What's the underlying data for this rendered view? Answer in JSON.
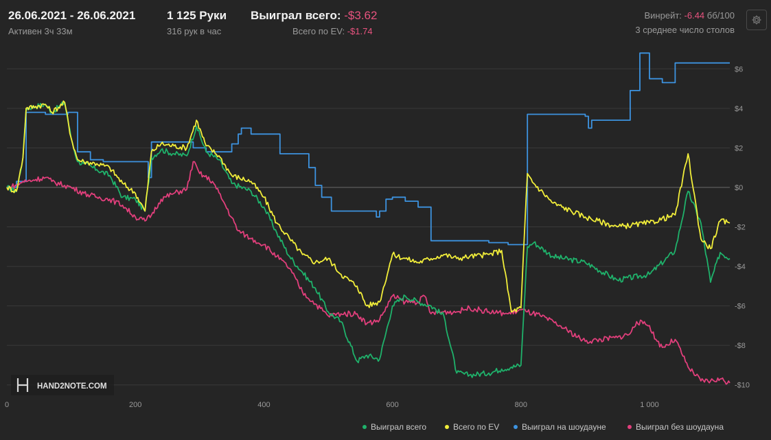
{
  "header": {
    "date_range": "26.06.2021 - 26.06.2021",
    "active_label": "Активен 3ч 33м",
    "hands": "1 125 Руки",
    "hands_per_hour": "316 рук в час",
    "won_total_label": "Выиграл всего:",
    "won_total_value": "-$3.62",
    "ev_label": "Всего по EV:",
    "ev_value": "-$1.74",
    "winrate_label": "Винрейт:",
    "winrate_value": "-6.44",
    "winrate_unit": "бб/100",
    "tables_label": "3 среднее число столов"
  },
  "logo_text": "HAND2NOTE.COM",
  "colors": {
    "background": "#252525",
    "grid": "#3a3a3a",
    "zero_line": "#6a6a6a",
    "won_total": "#1fb26b",
    "ev": "#f2ee3a",
    "showdown": "#3d93e0",
    "no_showdown": "#e23f7c",
    "negative": "#e8537f"
  },
  "icons": {
    "settings": "gear-icon"
  },
  "chart_data": {
    "type": "line",
    "xlim": [
      0,
      1125
    ],
    "ylim": [
      -10.6,
      7.4
    ],
    "x_ticks": [
      0,
      200,
      400,
      600,
      800,
      1000
    ],
    "x_tick_labels": [
      "0",
      "200",
      "400",
      "600",
      "800",
      "1 000"
    ],
    "y_ticks": [
      6,
      4,
      2,
      0,
      -2,
      -4,
      -6,
      -8,
      -10
    ],
    "y_tick_labels": [
      "$6",
      "$4",
      "$2",
      "$0",
      "-$2",
      "-$4",
      "-$6",
      "-$8",
      "-$10"
    ],
    "grid": true,
    "legend_position": "bottom-right",
    "series": [
      {
        "name": "Выиграл всего",
        "color": "#1fb26b",
        "x": [
          0,
          15,
          25,
          30,
          45,
          60,
          70,
          90,
          100,
          110,
          120,
          140,
          160,
          180,
          200,
          215,
          225,
          240,
          260,
          280,
          295,
          310,
          330,
          350,
          380,
          400,
          420,
          440,
          460,
          480,
          500,
          520,
          545,
          560,
          580,
          600,
          620,
          640,
          660,
          680,
          700,
          720,
          750,
          770,
          785,
          800,
          810,
          820,
          850,
          900,
          950,
          1000,
          1040,
          1060,
          1080,
          1095,
          1110,
          1125
        ],
        "y": [
          0,
          -0.2,
          1.5,
          4,
          4.1,
          4.2,
          3.8,
          4.3,
          2.5,
          1.3,
          1.2,
          0.9,
          0.6,
          -0.5,
          -0.6,
          -1.2,
          1.5,
          1.9,
          1.7,
          1.6,
          3.1,
          1.8,
          1.4,
          0.2,
          -0.2,
          -1,
          -2.3,
          -3.5,
          -4.3,
          -5.1,
          -6.3,
          -6.8,
          -8.8,
          -8.5,
          -8.7,
          -6,
          -5.5,
          -5.8,
          -6,
          -6.5,
          -9.4,
          -9.5,
          -9.4,
          -9.2,
          -9.1,
          -9,
          -3,
          -2.8,
          -3.5,
          -3.8,
          -4.7,
          -4.4,
          -3.2,
          -0.2,
          -1.8,
          -4.8,
          -3.3,
          -3.6
        ]
      },
      {
        "name": "Всего по EV",
        "color": "#f2ee3a",
        "x": [
          0,
          15,
          25,
          30,
          45,
          60,
          70,
          90,
          100,
          110,
          120,
          140,
          160,
          180,
          200,
          215,
          225,
          240,
          260,
          280,
          295,
          310,
          330,
          350,
          380,
          400,
          420,
          440,
          460,
          480,
          500,
          520,
          545,
          560,
          580,
          600,
          620,
          640,
          660,
          680,
          700,
          720,
          750,
          770,
          785,
          800,
          810,
          820,
          850,
          900,
          950,
          1000,
          1040,
          1060,
          1080,
          1095,
          1110,
          1125
        ],
        "y": [
          0,
          -0.2,
          1.5,
          4,
          4.1,
          4.2,
          3.8,
          4.3,
          2.5,
          1.4,
          1.3,
          1.2,
          1,
          0.2,
          -0.3,
          -1.2,
          1.8,
          2.2,
          2.1,
          2,
          3.4,
          2.1,
          1.6,
          0.6,
          0.3,
          -0.5,
          -1.8,
          -2.6,
          -3.4,
          -3.8,
          -3.6,
          -4.4,
          -5,
          -6,
          -5.8,
          -3.4,
          -3.6,
          -3.8,
          -3.6,
          -3.4,
          -3.6,
          -3.5,
          -3.4,
          -3.2,
          -6.3,
          -6.1,
          0.7,
          0.2,
          -0.8,
          -1.5,
          -2,
          -1.8,
          -1.4,
          1.7,
          -2.6,
          -3.1,
          -1.7,
          -1.8
        ]
      },
      {
        "name": "Выиграл на шоудауне",
        "color": "#3d93e0",
        "x": [
          0,
          15,
          30,
          40,
          60,
          80,
          95,
          110,
          130,
          150,
          170,
          190,
          210,
          220,
          225,
          240,
          260,
          275,
          290,
          310,
          330,
          350,
          360,
          365,
          380,
          400,
          425,
          440,
          460,
          470,
          480,
          490,
          505,
          520,
          545,
          560,
          575,
          580,
          590,
          600,
          620,
          640,
          650,
          660,
          690,
          720,
          750,
          780,
          800,
          810,
          830,
          860,
          900,
          905,
          910,
          930,
          960,
          970,
          975,
          985,
          1000,
          1020,
          1040,
          1050,
          1060,
          1080,
          1100,
          1125
        ],
        "y": [
          0,
          0.3,
          3.8,
          3.8,
          3.7,
          3.7,
          3.8,
          1.8,
          1.4,
          1.3,
          1.3,
          1.3,
          1.3,
          0.5,
          2.3,
          2.3,
          2.3,
          2.3,
          2.0,
          1.8,
          1.8,
          2.2,
          2.7,
          3.0,
          2.7,
          2.7,
          1.7,
          1.7,
          1.7,
          1.0,
          0.1,
          -0.5,
          -1.2,
          -1.2,
          -1.2,
          -1.2,
          -1.5,
          -1.2,
          -0.6,
          -0.5,
          -0.7,
          -1.0,
          -1.0,
          -2.7,
          -2.7,
          -2.7,
          -2.8,
          -2.9,
          -2.9,
          3.7,
          3.7,
          3.7,
          3.6,
          3.0,
          3.4,
          3.4,
          3.4,
          4.9,
          4.9,
          6.8,
          5.5,
          5.3,
          6.3,
          6.3,
          6.3,
          6.3,
          6.3,
          6.3
        ]
      },
      {
        "name": "Выиграл без шоудауна",
        "color": "#e23f7c",
        "x": [
          0,
          15,
          25,
          30,
          45,
          60,
          70,
          90,
          100,
          120,
          140,
          160,
          180,
          200,
          215,
          225,
          240,
          260,
          280,
          290,
          300,
          320,
          340,
          360,
          380,
          400,
          420,
          440,
          460,
          480,
          500,
          520,
          545,
          560,
          580,
          600,
          620,
          640,
          650,
          660,
          680,
          700,
          720,
          750,
          780,
          800,
          810,
          830,
          860,
          900,
          950,
          970,
          980,
          990,
          1000,
          1010,
          1020,
          1040,
          1060,
          1080,
          1095,
          1110,
          1125
        ],
        "y": [
          0,
          0.1,
          0.3,
          0.3,
          0.4,
          0.5,
          0.3,
          0.1,
          0.0,
          -0.3,
          -0.5,
          -0.6,
          -0.9,
          -1.5,
          -1.7,
          -1.4,
          -0.6,
          -0.3,
          -0.1,
          1.3,
          0.7,
          0.3,
          -0.9,
          -2.2,
          -2.6,
          -2.9,
          -3.5,
          -4.1,
          -5.3,
          -5.9,
          -6.5,
          -6.4,
          -6.4,
          -6.9,
          -6.7,
          -5.5,
          -5.8,
          -5.8,
          -5.5,
          -6.4,
          -6.3,
          -6.3,
          -6.1,
          -6.3,
          -6.4,
          -6.2,
          -6.3,
          -6.5,
          -7.0,
          -7.8,
          -7.6,
          -7.4,
          -6.8,
          -6.9,
          -7.0,
          -7.7,
          -8.1,
          -7.7,
          -9.1,
          -9.8,
          -9.8,
          -9.7,
          -9.9
        ]
      }
    ]
  }
}
